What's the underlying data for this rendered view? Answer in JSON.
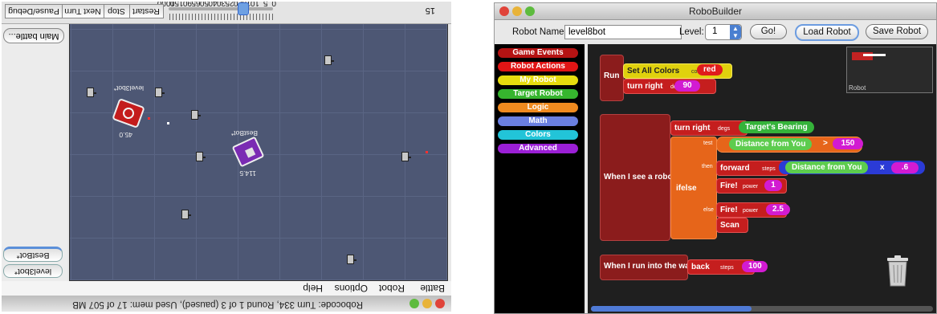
{
  "robocode": {
    "status_text": "Robocode: Turn 334, Round 1 of 3 (paused), Used mem: 17 of 507 MB",
    "menus": [
      "Battle",
      "Robot",
      "Options",
      "Help"
    ],
    "main_battle_label": "Main battle...",
    "robot_buttons": [
      "BestBot*",
      "level3bot*"
    ],
    "toolbar": {
      "pause_label": "Pause/Debug",
      "next_turn_label": "Next Turn",
      "stop_label": "Stop",
      "restart_label": "Restart",
      "tps_value": "15"
    },
    "speed_scale": [
      "0",
      "5",
      "10",
      "15",
      "20",
      "25",
      "30",
      "40",
      "50",
      "65",
      "90",
      "150",
      "1000"
    ],
    "speed_value": 15,
    "arena": {
      "robots": [
        {
          "name": "level3bot*",
          "energy": "45.0",
          "color": "#c41c1c"
        },
        {
          "name": "BestBot*",
          "energy": "114.5",
          "color": "#7a2bb3"
        }
      ]
    }
  },
  "robobuilder": {
    "title": "RoboBuilder",
    "robot_name_label": "Robot Name:",
    "robot_name_value": "level8bot",
    "level_label": "Level:",
    "level_value": "1",
    "go_label": "Go!",
    "load_label": "Load Robot",
    "save_label": "Save Robot",
    "minimap_label": "Robot",
    "categories": [
      {
        "label": "Game Events",
        "color": "#b51313"
      },
      {
        "label": "Robot Actions",
        "color": "#e01515"
      },
      {
        "label": "My Robot",
        "color": "#e6dc0e"
      },
      {
        "label": "Target Robot",
        "color": "#36b52e"
      },
      {
        "label": "Logic",
        "color": "#ef8a1f"
      },
      {
        "label": "Math",
        "color": "#6a7fe0"
      },
      {
        "label": "Colors",
        "color": "#22c4d8"
      },
      {
        "label": "Advanced",
        "color": "#9b1fd6"
      }
    ],
    "blocks": {
      "run": {
        "hat": "Run",
        "set_colors": "Set All Colors",
        "color_param": "color",
        "color_value": "red",
        "turn_right": "turn right",
        "degs_param": "degs",
        "degs_value": "90"
      },
      "see": {
        "hat": "When I see a robot",
        "turn_right": "turn right",
        "degs_param": "degs",
        "bearing": "Target's Bearing",
        "ifelse": "ifelse",
        "test": "test",
        "then": "then",
        "else": "else",
        "distance": "Distance from You",
        "gt": ">",
        "threshold": "150",
        "forward": "forward",
        "steps": "steps",
        "distance2": "Distance from You",
        "times": "x",
        "factor": ".6",
        "fire1": "Fire!",
        "power1": "power",
        "power1_val": "1",
        "fire2": "Fire!",
        "power2": "power",
        "power2_val": "2.5",
        "scan": "Scan"
      },
      "wall": {
        "hat": "When I run into the wall",
        "back": "back",
        "steps": "steps",
        "steps_val": "100"
      }
    }
  }
}
